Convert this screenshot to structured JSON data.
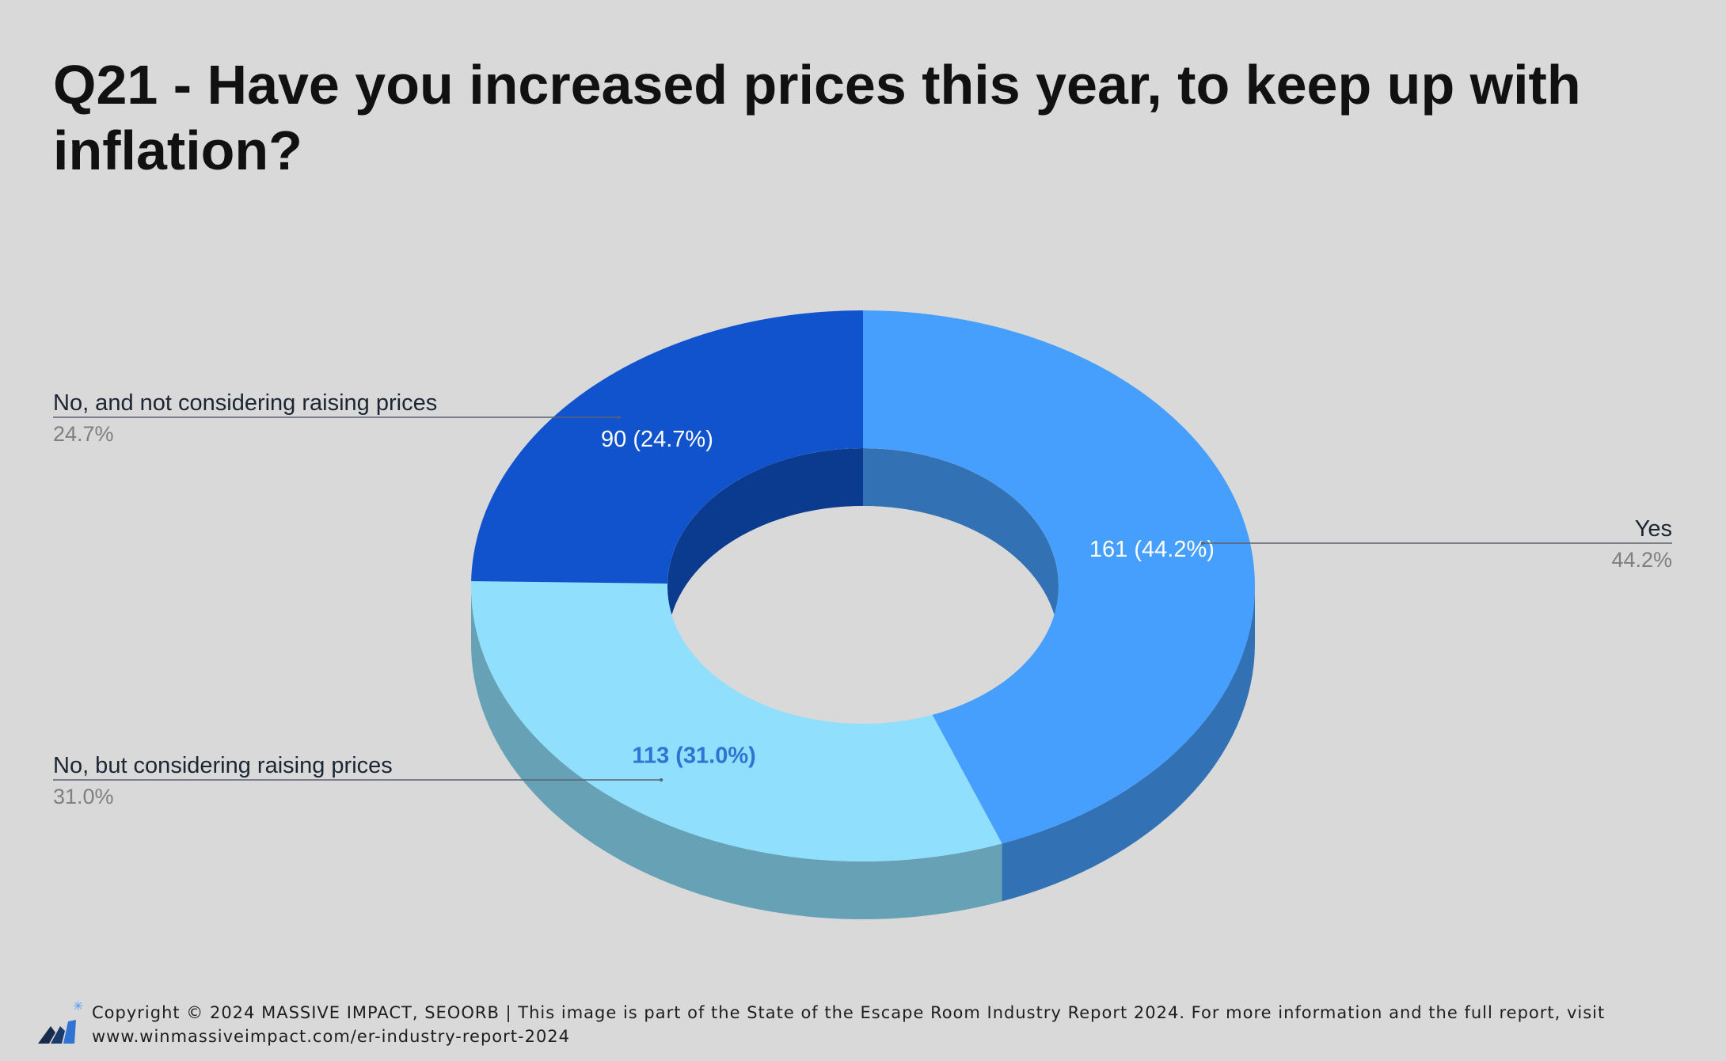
{
  "title": "Q21 - Have you increased prices this year, to keep up with inflation?",
  "chart_data": {
    "type": "pie",
    "style": "3d-donut",
    "title": "Q21 - Have you increased prices this year, to keep up with inflation?",
    "slices": [
      {
        "label": "Yes",
        "value": 161,
        "percent": "44.2%",
        "data_label": "161 (44.2%)",
        "color": "#479ffd",
        "side_color": "#3371b5",
        "label_color": "#ffffff",
        "label_bold": false
      },
      {
        "label": "No, but considering raising prices",
        "value": 113,
        "percent": "31.0%",
        "data_label": "113 (31.0%)",
        "color": "#90dffd",
        "side_color": "#66a1b6",
        "label_color": "#2f74d2",
        "label_bold": true
      },
      {
        "label": "No, and not considering raising prices",
        "value": 90,
        "percent": "24.7%",
        "data_label": "90 (24.7%)",
        "color": "#1053cc",
        "side_color": "#0b3b8f",
        "label_color": "#ffffff",
        "label_bold": false
      }
    ],
    "legend": "callouts"
  },
  "footer": {
    "text": "Copyright © 2024 MASSIVE IMPACT, SEOORB | This image is part of the State of the Escape Room Industry Report 2024. For more information and the full report, visit www.winmassiveimpact.com/er-industry-report-2024",
    "logo_icon": "massive-impact-logo-icon"
  }
}
